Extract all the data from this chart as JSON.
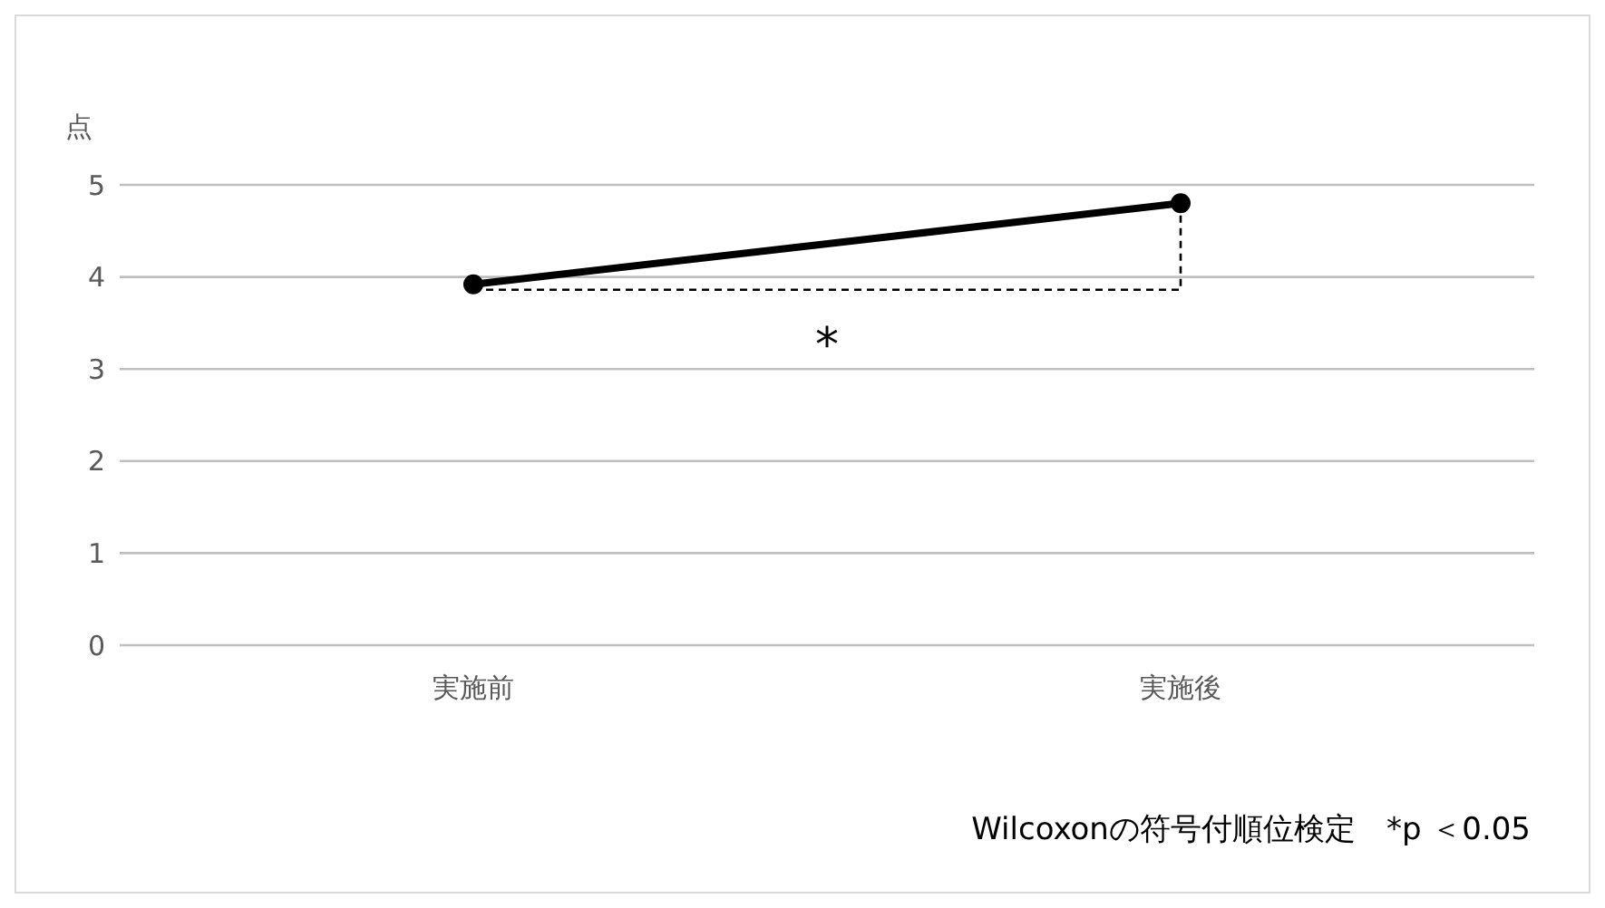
{
  "chart_data": {
    "type": "line",
    "ylabel": "点",
    "categories": [
      "実施前",
      "実施後"
    ],
    "series": [
      {
        "color": "#000000",
        "values": [
          3.92,
          4.8
        ]
      }
    ],
    "ylim": [
      0,
      5
    ],
    "yticks": [
      0,
      1,
      2,
      3,
      4,
      5
    ],
    "grid": "y",
    "marker": "circle",
    "line_style": "solid",
    "legend": false,
    "annotations": [
      "*",
      "Wilcoxonの符号付順位検定　*p ＜0.05"
    ]
  }
}
